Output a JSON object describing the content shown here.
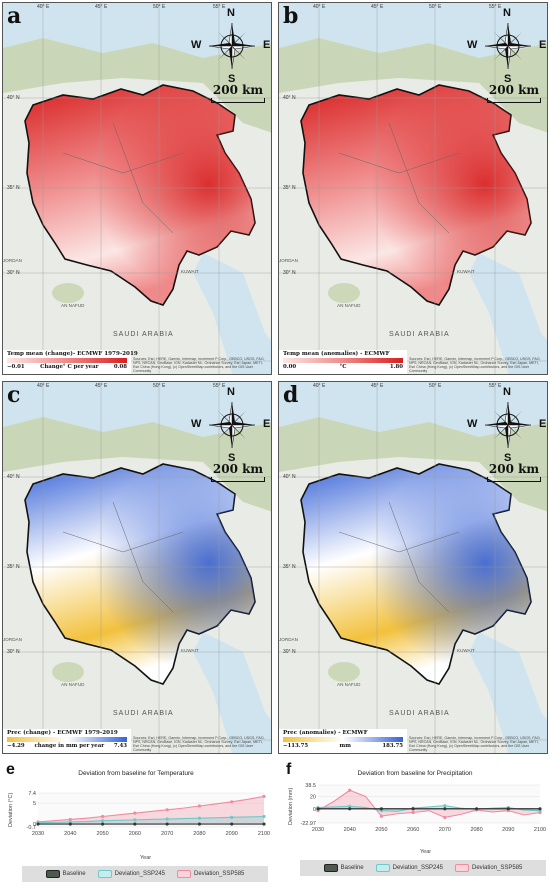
{
  "panels": [
    {
      "letter": "a",
      "legend_title": "Temp mean (change)- ECMWF 1979-2019",
      "legend_min": "−0.01",
      "legend_unit": "Change° C per year",
      "legend_max": "0.08",
      "colors": [
        "#fbe7e5",
        "#f08a8a",
        "#d81f1f"
      ]
    },
    {
      "letter": "b",
      "legend_title": "Temp mean (anomalies) - ECMWF",
      "legend_min": "0.00",
      "legend_unit": "°C",
      "legend_max": "1.80",
      "colors": [
        "#fbe7e5",
        "#f08a8a",
        "#d81f1f"
      ]
    },
    {
      "letter": "c",
      "legend_title": "Prec (change) - ECMWF 1979-2019",
      "legend_min": "−4.29",
      "legend_unit": "change in mm per year",
      "legend_max": "7.43",
      "colors": [
        "#f2c13c",
        "#ffffff",
        "#3763d8"
      ]
    },
    {
      "letter": "d",
      "legend_title": "Prec (anomalies) - ECMWF",
      "legend_min": "−113.75",
      "legend_unit": "mm",
      "legend_max": "183.75",
      "colors": [
        "#f2c13c",
        "#ffffff",
        "#3763d8"
      ]
    }
  ],
  "map": {
    "lon_ticks": [
      "40° E",
      "45° E",
      "50° E",
      "55° E"
    ],
    "lat_ticks": [
      "40° N",
      "35° N",
      "30° N",
      "25° N"
    ],
    "compass": {
      "n": "N",
      "s": "S",
      "e": "E",
      "w": "W"
    },
    "scale": "200 km",
    "credit": "Sources: Esri, HERE, Garmin, Intermap, increment P Corp., GEBCO, USGS, FAO, NPS, NRCAN, GeoBase, IGN, Kadaster NL, Ordnance Survey, Esri Japan, METI, Esri China (Hong Kong), (c) OpenStreetMap contributors, and the GIS User Community",
    "labels": {
      "saudi": "SAUDI ARABIA",
      "kuwait": "KUWAIT",
      "nafud": "AN NAFUD",
      "jordan": "JORDAN"
    }
  },
  "charts": {
    "e": {
      "letter": "e",
      "title": "Deviation from baseline for Temperature",
      "ylabel": "Deviation (°C)",
      "xlabel": "Year",
      "legend": [
        "Baseline",
        "Deviation_SSP245",
        "Deviation_SSP585"
      ]
    },
    "f": {
      "letter": "f",
      "title": "Deviation from baseline for Precipitation",
      "ylabel": "Deviation (mm)",
      "xlabel": "Year",
      "legend": [
        "Baseline",
        "Deviation_SSP245",
        "Deviation_SSP585"
      ]
    }
  },
  "chart_data": [
    {
      "type": "area",
      "title": "Deviation from baseline for Temperature",
      "xlabel": "Year",
      "ylabel": "Deviation (°C)",
      "x": [
        2030,
        2035,
        2040,
        2045,
        2050,
        2055,
        2060,
        2065,
        2070,
        2075,
        2080,
        2085,
        2090,
        2095,
        2100
      ],
      "yticks": [
        "7.4",
        "5",
        "0",
        "-0.7"
      ],
      "ylim": [
        -0.7,
        7.4
      ],
      "series": [
        {
          "name": "Baseline",
          "color": "#3a3a3a",
          "values": [
            0,
            0,
            0,
            0,
            0,
            0,
            0,
            0,
            0,
            0,
            0,
            0,
            0,
            0,
            0
          ]
        },
        {
          "name": "Deviation_SSP245",
          "color": "#6fc9c9",
          "values": [
            0.3,
            0.4,
            0.5,
            0.6,
            0.8,
            0.9,
            1.0,
            1.1,
            1.2,
            1.3,
            1.4,
            1.5,
            1.6,
            1.7,
            1.8
          ]
        },
        {
          "name": "Deviation_SSP585",
          "color": "#f08ba0",
          "values": [
            0.5,
            0.8,
            1.1,
            1.4,
            1.8,
            2.2,
            2.6,
            3.0,
            3.4,
            3.8,
            4.3,
            4.8,
            5.3,
            5.9,
            6.6
          ]
        }
      ]
    },
    {
      "type": "area",
      "title": "Deviation from baseline for Precipitation",
      "xlabel": "Year",
      "ylabel": "Deviation (mm)",
      "x": [
        2030,
        2035,
        2040,
        2045,
        2050,
        2055,
        2060,
        2065,
        2070,
        2075,
        2080,
        2085,
        2090,
        2095,
        2100
      ],
      "yticks": [
        "38.5",
        "20",
        "0",
        "-22.97"
      ],
      "ylim": [
        -22.97,
        38.5
      ],
      "series": [
        {
          "name": "Baseline",
          "color": "#3a3a3a",
          "values": [
            0,
            0,
            0,
            0,
            0,
            0,
            0,
            0,
            0,
            0,
            0,
            0,
            0,
            0,
            0
          ]
        },
        {
          "name": "Deviation_SSP245",
          "color": "#6fc9c9",
          "values": [
            2,
            3,
            4,
            2,
            -3,
            -4,
            1,
            3,
            5,
            1,
            -1,
            1,
            2,
            -2,
            -3
          ]
        },
        {
          "name": "Deviation_SSP585",
          "color": "#f08ba0",
          "values": [
            -3,
            12,
            30,
            20,
            -12,
            -8,
            -6,
            -3,
            -14,
            -9,
            -2,
            -5,
            -3,
            -10,
            -6
          ]
        }
      ]
    }
  ]
}
